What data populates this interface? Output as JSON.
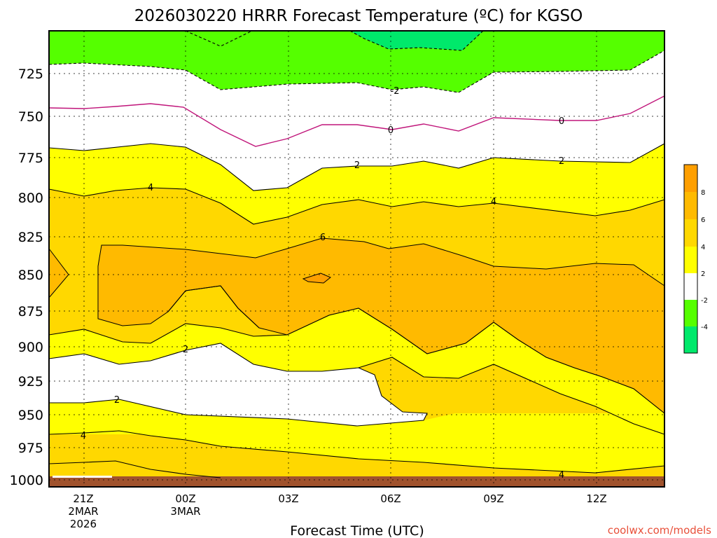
{
  "chart_data": {
    "type": "heatmap",
    "title": "2026030220 HRRR Forecast Temperature (ºC) for KGSO",
    "xlabel": "Forecast Time (UTC)",
    "ylabel": "",
    "credit": "coolwx.com/models",
    "y_scale": "pressure (log), inverted",
    "ylim": [
      1000,
      700
    ],
    "y_ticks": [
      "725",
      "750",
      "775",
      "800",
      "825",
      "850",
      "875",
      "900",
      "925",
      "950",
      "975",
      "1000"
    ],
    "x_ticks": [
      {
        "line1": "21Z",
        "line2": "2MAR",
        "line3": "2026"
      },
      {
        "line1": "00Z",
        "line2": "3MAR",
        "line3": ""
      },
      {
        "line1": "03Z",
        "line2": "",
        "line3": ""
      },
      {
        "line1": "06Z",
        "line2": "",
        "line3": ""
      },
      {
        "line1": "09Z",
        "line2": "",
        "line3": ""
      },
      {
        "line1": "12Z",
        "line2": "",
        "line3": ""
      }
    ],
    "grid": "dotted",
    "contour_labels": [
      "-2",
      "0",
      "2",
      "4",
      "6"
    ],
    "colorbar": {
      "labels": [
        "8",
        "6",
        "4",
        "2",
        "-2",
        "-4"
      ],
      "colors": [
        "#ff9f00",
        "#ffba00",
        "#ffd800",
        "#ffff00",
        "#ffffff",
        "#55ff00",
        "#00e96b"
      ]
    },
    "fill_colors": {
      "below_m4": "#00e96b",
      "m4_m2": "#55ff00",
      "m2_2": "#ffffff",
      "c2_4": "#ffff00",
      "c4_6": "#ffd800",
      "c6_8": "#ffba00",
      "c8_10": "#ff9f00",
      "ground": "#a0522d",
      "zero_line": "#c0157a"
    }
  }
}
